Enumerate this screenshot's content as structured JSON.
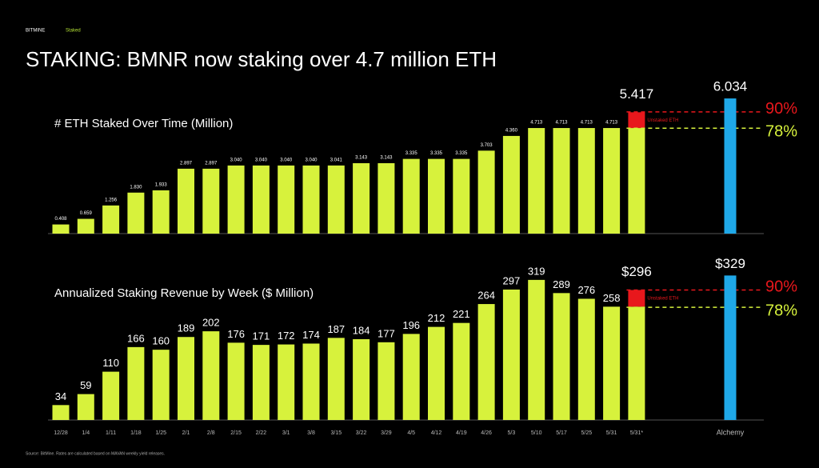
{
  "header": {
    "brand": "BITMINE",
    "tag": "Staked"
  },
  "title": "STAKING: BMNR now staking over 4.7 million ETH",
  "footer": "Source: BitMine. Rates are calculated based on MAVAN weekly yield releases.",
  "chart_data": [
    {
      "type": "bar",
      "title": "# ETH Staked Over Time (Million)",
      "series": [
        {
          "color": "#d7f23c",
          "values": [
            0.408,
            0.659,
            1.256,
            1.83,
            1.933,
            2.897,
            2.897,
            3.04,
            3.04,
            3.04,
            3.04,
            3.041,
            3.143,
            3.143,
            3.335,
            3.335,
            3.335,
            3.703,
            4.36,
            4.713,
            4.713,
            4.713,
            4.713,
            4.713
          ],
          "value_labels": [
            "0.408",
            "0.659",
            "1.256",
            "1.830",
            "1.933",
            "2.897",
            "2.897",
            "3.040",
            "3.040",
            "3.040",
            "3.040",
            "3.041",
            "3.143",
            "3.143",
            "3.335",
            "3.335",
            "3.335",
            "3.703",
            "4.360",
            "4.713",
            "4.713",
            "4.713",
            "4.713",
            null
          ]
        },
        {
          "name": "Unstaked ETH",
          "color": "#e8171c",
          "values": [
            null,
            null,
            null,
            null,
            null,
            null,
            null,
            null,
            null,
            null,
            null,
            null,
            null,
            null,
            null,
            null,
            null,
            null,
            null,
            null,
            null,
            null,
            null,
            0.704
          ]
        }
      ],
      "stack_total": {
        "value": 5.417,
        "label": "5.417"
      },
      "benchmark": {
        "value": 6.034,
        "label": "6.034",
        "color": "#1fa8e8"
      },
      "reference_lines": [
        {
          "value": 5.431,
          "label": "90%",
          "color": "#e8171c"
        },
        {
          "value": 4.707,
          "label": "78%",
          "color": "#d7f23c"
        }
      ],
      "ylim": [
        0,
        6.2
      ]
    },
    {
      "type": "bar",
      "title": "Annualized Staking Revenue by Week ($ Million)",
      "categories": [
        "12/28",
        "1/4",
        "1/11",
        "1/18",
        "1/25",
        "2/1",
        "2/8",
        "2/15",
        "2/22",
        "3/1",
        "3/8",
        "3/15",
        "3/22",
        "3/29",
        "4/5",
        "4/12",
        "4/19",
        "4/26",
        "5/3",
        "5/10",
        "5/17",
        "5/25",
        "5/31",
        "5/31*"
      ],
      "series": [
        {
          "color": "#d7f23c",
          "values": [
            34,
            59,
            110,
            166,
            160,
            189,
            202,
            176,
            171,
            172,
            174,
            187,
            184,
            177,
            196,
            212,
            221,
            264,
            297,
            319,
            289,
            276,
            258,
            258
          ],
          "value_labels": [
            "34",
            "59",
            "110",
            "166",
            "160",
            "189",
            "202",
            "176",
            "171",
            "172",
            "174",
            "187",
            "184",
            "177",
            "196",
            "212",
            "221",
            "264",
            "297",
            "319",
            "289",
            "276",
            "258",
            null
          ]
        },
        {
          "name": "Unstaked ETH",
          "color": "#e8171c",
          "values": [
            null,
            null,
            null,
            null,
            null,
            null,
            null,
            null,
            null,
            null,
            null,
            null,
            null,
            null,
            null,
            null,
            null,
            null,
            null,
            null,
            null,
            null,
            null,
            38
          ]
        }
      ],
      "stack_total": {
        "value": 296,
        "label": "$296"
      },
      "benchmark": {
        "name": "Alchemy",
        "value": 329,
        "label": "$329",
        "color": "#1fa8e8"
      },
      "reference_lines": [
        {
          "value": 296.1,
          "label": "90%",
          "color": "#e8171c"
        },
        {
          "value": 256.6,
          "label": "78%",
          "color": "#d7f23c"
        }
      ],
      "ylim": [
        0,
        340
      ]
    }
  ]
}
